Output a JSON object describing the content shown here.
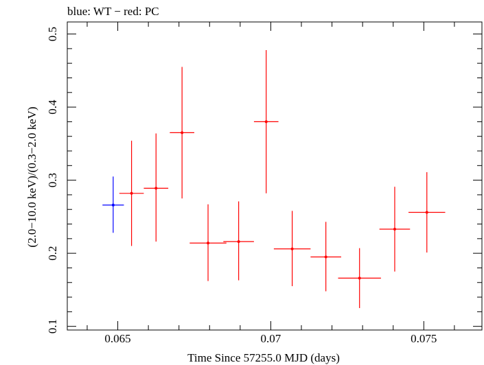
{
  "chart_data": {
    "type": "scatter",
    "title": "blue: WT − red: PC",
    "xlabel": "Time Since 57255.0 MJD (days)",
    "ylabel": "(2.0−10.0 keV)/(0.3−2.0 keV)",
    "xlim": [
      0.06335,
      0.0769
    ],
    "ylim": [
      0.095,
      0.5165
    ],
    "x_ticks": [
      0.065,
      0.07,
      0.075
    ],
    "x_tick_labels": [
      "0.065",
      "0.07",
      "0.075"
    ],
    "y_ticks": [
      0.1,
      0.2,
      0.3,
      0.4,
      0.5
    ],
    "y_tick_labels": [
      "0.1",
      "0.2",
      "0.3",
      "0.4",
      "0.5"
    ],
    "grid": false,
    "series": [
      {
        "color": "#0000ff",
        "points": [
          {
            "x": 0.06485,
            "y": 0.266,
            "xerr": 0.00035,
            "yerr_low": 0.038,
            "yerr_high": 0.039
          }
        ]
      },
      {
        "color": "#ff0000",
        "points": [
          {
            "x": 0.06545,
            "y": 0.282,
            "xerr": 0.0004,
            "yerr_low": 0.072,
            "yerr_high": 0.072
          },
          {
            "x": 0.06625,
            "y": 0.289,
            "xerr": 0.0004,
            "yerr_low": 0.073,
            "yerr_high": 0.075
          },
          {
            "x": 0.0671,
            "y": 0.365,
            "xerr": 0.0004,
            "yerr_low": 0.09,
            "yerr_high": 0.09
          },
          {
            "x": 0.06795,
            "y": 0.214,
            "xerr": 0.0006,
            "yerr_low": 0.052,
            "yerr_high": 0.053
          },
          {
            "x": 0.06895,
            "y": 0.216,
            "xerr": 0.0005,
            "yerr_low": 0.053,
            "yerr_high": 0.055
          },
          {
            "x": 0.06985,
            "y": 0.38,
            "xerr": 0.0004,
            "yerr_low": 0.098,
            "yerr_high": 0.098
          },
          {
            "x": 0.0707,
            "y": 0.206,
            "xerr": 0.0006,
            "yerr_low": 0.051,
            "yerr_high": 0.052
          },
          {
            "x": 0.0718,
            "y": 0.195,
            "xerr": 0.0005,
            "yerr_low": 0.047,
            "yerr_high": 0.048
          },
          {
            "x": 0.0729,
            "y": 0.166,
            "xerr": 0.0007,
            "yerr_low": 0.041,
            "yerr_high": 0.041
          },
          {
            "x": 0.07405,
            "y": 0.233,
            "xerr": 0.0005,
            "yerr_low": 0.058,
            "yerr_high": 0.058
          },
          {
            "x": 0.0751,
            "y": 0.256,
            "xerr": 0.0006,
            "yerr_low": 0.055,
            "yerr_high": 0.055
          }
        ]
      }
    ]
  }
}
